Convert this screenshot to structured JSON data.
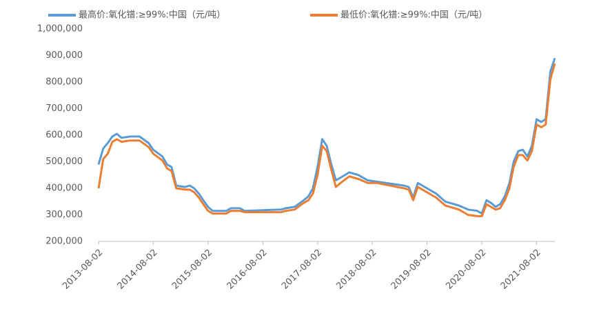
{
  "chart_data": {
    "type": "line",
    "x": [
      "2013-08-02",
      "2013-09-02",
      "2013-10-02",
      "2013-11-02",
      "2013-12-02",
      "2014-01-02",
      "2014-03-02",
      "2014-05-02",
      "2014-07-02",
      "2014-08-02",
      "2014-10-02",
      "2014-11-02",
      "2014-12-02",
      "2015-01-02",
      "2015-03-02",
      "2015-04-02",
      "2015-05-02",
      "2015-06-02",
      "2015-07-02",
      "2015-08-02",
      "2015-09-02",
      "2015-12-02",
      "2016-01-02",
      "2016-03-02",
      "2016-04-02",
      "2016-12-02",
      "2017-01-02",
      "2017-03-02",
      "2017-05-02",
      "2017-06-02",
      "2017-07-02",
      "2017-08-02",
      "2017-09-02",
      "2017-10-02",
      "2017-11-02",
      "2017-12-02",
      "2018-01-02",
      "2018-03-02",
      "2018-05-02",
      "2018-07-02",
      "2018-09-02",
      "2019-03-02",
      "2019-04-02",
      "2019-05-02",
      "2019-06-02",
      "2019-08-02",
      "2019-10-02",
      "2019-12-02",
      "2020-03-02",
      "2020-05-02",
      "2020-07-02",
      "2020-08-02",
      "2020-09-02",
      "2020-10-02",
      "2020-11-02",
      "2020-12-02",
      "2021-01-02",
      "2021-02-02",
      "2021-03-02",
      "2021-04-02",
      "2021-05-02",
      "2021-06-02",
      "2021-07-02",
      "2021-08-02",
      "2021-09-02",
      "2021-10-02",
      "2021-11-02",
      "2021-12-02"
    ],
    "series": [
      {
        "name": "最高价:氧化镨:≥99%:中国（元/吨）",
        "color": "#5b9bd5",
        "values": [
          490000,
          550000,
          570000,
          595000,
          605000,
          590000,
          595000,
          595000,
          570000,
          545000,
          520000,
          490000,
          480000,
          410000,
          405000,
          410000,
          400000,
          380000,
          355000,
          330000,
          315000,
          315000,
          325000,
          325000,
          315000,
          320000,
          325000,
          330000,
          355000,
          370000,
          400000,
          480000,
          585000,
          560000,
          490000,
          430000,
          440000,
          460000,
          450000,
          430000,
          425000,
          410000,
          405000,
          365000,
          420000,
          400000,
          380000,
          350000,
          335000,
          320000,
          315000,
          305000,
          355000,
          345000,
          330000,
          340000,
          370000,
          420000,
          500000,
          540000,
          545000,
          520000,
          560000,
          660000,
          650000,
          660000,
          840000,
          890000
        ]
      },
      {
        "name": "最低价:氧化镨:≥99%:中国（元/吨）",
        "color": "#ed7d31",
        "values": [
          400000,
          510000,
          530000,
          575000,
          585000,
          575000,
          580000,
          580000,
          555000,
          530000,
          505000,
          475000,
          465000,
          400000,
          395000,
          395000,
          385000,
          365000,
          340000,
          315000,
          305000,
          305000,
          315000,
          315000,
          310000,
          310000,
          315000,
          320000,
          345000,
          355000,
          380000,
          450000,
          560000,
          540000,
          470000,
          405000,
          420000,
          445000,
          435000,
          420000,
          420000,
          400000,
          395000,
          355000,
          405000,
          385000,
          365000,
          335000,
          320000,
          300000,
          295000,
          295000,
          340000,
          330000,
          320000,
          325000,
          355000,
          400000,
          480000,
          525000,
          525000,
          505000,
          540000,
          640000,
          630000,
          640000,
          810000,
          870000
        ]
      }
    ],
    "xlim": [
      "2013-08-02",
      "2021-12-02"
    ],
    "xticks": [
      "2013-08-02",
      "2014-08-02",
      "2015-08-02",
      "2016-08-02",
      "2017-08-02",
      "2018-08-02",
      "2019-08-02",
      "2020-08-02",
      "2021-08-02"
    ],
    "ylim": [
      200000,
      1000000
    ],
    "yticks": [
      {
        "value": 200000,
        "label": "200,000"
      },
      {
        "value": 300000,
        "label": "300,000"
      },
      {
        "value": 400000,
        "label": "400,000"
      },
      {
        "value": 500000,
        "label": "500,000"
      },
      {
        "value": 600000,
        "label": "600,000"
      },
      {
        "value": 700000,
        "label": "700,000"
      },
      {
        "value": 800000,
        "label": "800,000"
      },
      {
        "value": 900000,
        "label": "900,000"
      },
      {
        "value": 1000000,
        "label": "1,000,000"
      }
    ],
    "grid": false
  }
}
